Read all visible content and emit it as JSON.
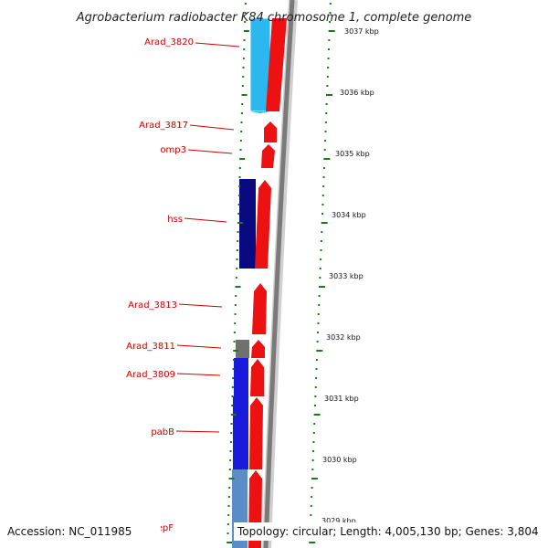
{
  "title": "Agrobacterium radiobacter K84 chromosome 1, complete genome",
  "footer": {
    "accession": "Accession: NC_011985",
    "topology": "Topology: circular; Length: 4,005,130 bp; Genes: 3,804"
  },
  "colors": {
    "label_red": "#cc0000",
    "tick_green": "#1a7a1a",
    "forward_red": "#ee1111",
    "backbone_gray": "#777777",
    "cyan": "#2ab8ee",
    "navy": "#0a0a80",
    "blue": "#1a1add",
    "steel": "#5a8cc8",
    "gray": "#707070"
  },
  "genes": [
    {
      "name": "Arad_3820",
      "label": "Arad_3820"
    },
    {
      "name": "Arad_3817",
      "label": "Arad_3817"
    },
    {
      "name": "omp3",
      "label": "omp3"
    },
    {
      "name": "hss",
      "label": "hss"
    },
    {
      "name": "Arad_3813",
      "label": "Arad_3813"
    },
    {
      "name": "Arad_3811",
      "label": "Arad_3811"
    },
    {
      "name": "Arad_3809",
      "label": "Arad_3809"
    },
    {
      "name": "pabB",
      "label": "pabB"
    },
    {
      "name": "pepF",
      "label": "pepF"
    }
  ],
  "kbp_ticks": [
    {
      "label": "3037 kbp"
    },
    {
      "label": "3036 kbp"
    },
    {
      "label": "3035 kbp"
    },
    {
      "label": "3034 kbp"
    },
    {
      "label": "3033 kbp"
    },
    {
      "label": "3032 kbp"
    },
    {
      "label": "3031 kbp"
    },
    {
      "label": "3030 kbp"
    },
    {
      "label": "3029 kbp"
    }
  ]
}
